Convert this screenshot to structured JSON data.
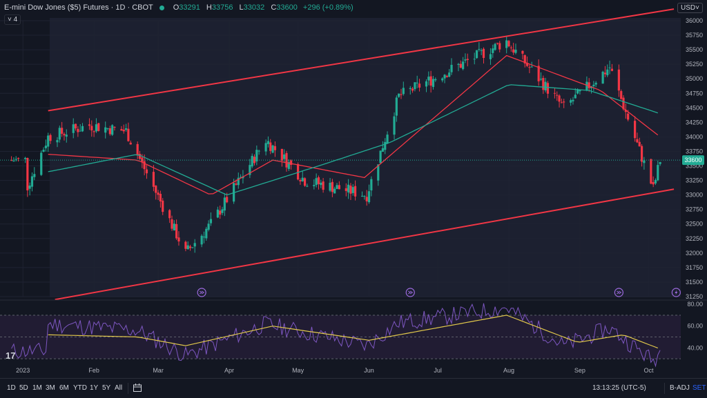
{
  "header": {
    "title": "E-mini Dow Jones ($5) Futures · 1D · CBOT",
    "ohlc": {
      "o_label": "O",
      "o": "33291",
      "h_label": "H",
      "h": "33756",
      "l_label": "L",
      "l": "33032",
      "c_label": "C",
      "c": "33600",
      "change": "+296 (+0.89%)"
    },
    "indicator_count": "4",
    "currency": "USD"
  },
  "colors": {
    "bg": "#131722",
    "up": "#22ab94",
    "down": "#f23645",
    "ma_fast": "#f23645",
    "ma_slow": "#22ab94",
    "channel": "#f23645",
    "rsi": "#7e57c2",
    "rsi_ma": "#e2c94b"
  },
  "chart_data": [
    {
      "type": "candlestick",
      "y_ticks": [
        "36000",
        "35750",
        "35500",
        "35250",
        "35000",
        "34750",
        "34500",
        "34250",
        "34000",
        "33750",
        "33500",
        "33250",
        "33000",
        "32750",
        "32500",
        "32250",
        "32000",
        "31750",
        "31500",
        "31250"
      ],
      "ylim": [
        31250,
        36000
      ],
      "x_ticks": [
        "2023",
        "Feb",
        "Mar",
        "Apr",
        "May",
        "Jun",
        "Jul",
        "Aug",
        "Sep",
        "Oct"
      ],
      "last_price_label": "33600",
      "key_points": [
        {
          "date": "2023-01-03",
          "close": 33150
        },
        {
          "date": "2023-01-12",
          "close": 34000
        },
        {
          "date": "2023-01-30",
          "close": 34200
        },
        {
          "date": "2023-02-15",
          "close": 34100
        },
        {
          "date": "2023-03-13",
          "close": 32000
        },
        {
          "date": "2023-03-24",
          "close": 32500
        },
        {
          "date": "2023-04-17",
          "close": 33950
        },
        {
          "date": "2023-05-04",
          "close": 33250
        },
        {
          "date": "2023-05-31",
          "close": 33000
        },
        {
          "date": "2023-06-14",
          "close": 34700
        },
        {
          "date": "2023-07-31",
          "close": 35650
        },
        {
          "date": "2023-08-25",
          "close": 34500
        },
        {
          "date": "2023-09-14",
          "close": 35200
        },
        {
          "date": "2023-10-03",
          "close": 33100
        },
        {
          "date": "2023-10-06",
          "close": 33600
        }
      ],
      "moving_averages": [
        {
          "color": "#f23645",
          "key_points": [
            {
              "date": "2023-01-12",
              "value": 33700
            },
            {
              "date": "2023-02-20",
              "value": 33600
            },
            {
              "date": "2023-03-24",
              "value": 33000
            },
            {
              "date": "2023-04-20",
              "value": 33600
            },
            {
              "date": "2023-05-30",
              "value": 33300
            },
            {
              "date": "2023-07-31",
              "value": 35400
            },
            {
              "date": "2023-09-10",
              "value": 34800
            },
            {
              "date": "2023-10-06",
              "value": 34000
            }
          ]
        },
        {
          "color": "#22ab94",
          "key_points": [
            {
              "date": "2023-01-12",
              "value": 33400
            },
            {
              "date": "2023-02-20",
              "value": 33700
            },
            {
              "date": "2023-03-31",
              "value": 33000
            },
            {
              "date": "2023-05-10",
              "value": 33500
            },
            {
              "date": "2023-06-10",
              "value": 33900
            },
            {
              "date": "2023-08-01",
              "value": 34900
            },
            {
              "date": "2023-09-05",
              "value": 34800
            },
            {
              "date": "2023-10-06",
              "value": 34400
            }
          ]
        }
      ],
      "channel": {
        "upper": [
          {
            "date": "2023-01-12",
            "value": 34450
          },
          {
            "date": "2023-10-12",
            "value": 36200
          }
        ],
        "lower": [
          {
            "date": "2023-01-15",
            "value": 31200
          },
          {
            "date": "2023-10-12",
            "value": 33100
          }
        ]
      },
      "event_markers": [
        {
          "date": "2023-03-20",
          "icon": "fast-forward-circle-icon"
        },
        {
          "date": "2023-06-19",
          "icon": "fast-forward-circle-icon"
        },
        {
          "date": "2023-09-18",
          "icon": "fast-forward-circle-icon"
        },
        {
          "date": "2023-10-13",
          "icon": "lightning-circle-icon"
        }
      ]
    },
    {
      "type": "line",
      "y_ticks": [
        "80.00",
        "60.00",
        "40.00"
      ],
      "ylim": [
        25,
        82
      ],
      "rsi_key_points": [
        {
          "date": "2023-01-12",
          "value": 62
        },
        {
          "date": "2023-02-20",
          "value": 56
        },
        {
          "date": "2023-03-13",
          "value": 33
        },
        {
          "date": "2023-04-17",
          "value": 62
        },
        {
          "date": "2023-05-31",
          "value": 42
        },
        {
          "date": "2023-06-14",
          "value": 63
        },
        {
          "date": "2023-07-31",
          "value": 77
        },
        {
          "date": "2023-08-25",
          "value": 42
        },
        {
          "date": "2023-09-14",
          "value": 58
        },
        {
          "date": "2023-10-03",
          "value": 28
        },
        {
          "date": "2023-10-06",
          "value": 37
        }
      ],
      "ma_key_points": [
        {
          "date": "2023-01-12",
          "value": 52
        },
        {
          "date": "2023-02-20",
          "value": 50
        },
        {
          "date": "2023-03-13",
          "value": 42
        },
        {
          "date": "2023-04-20",
          "value": 60
        },
        {
          "date": "2023-06-01",
          "value": 47
        },
        {
          "date": "2023-07-31",
          "value": 70
        },
        {
          "date": "2023-08-31",
          "value": 45
        },
        {
          "date": "2023-09-20",
          "value": 52
        },
        {
          "date": "2023-10-06",
          "value": 39
        }
      ]
    }
  ],
  "bottom": {
    "timeframes": [
      "1D",
      "5D",
      "1M",
      "3M",
      "6M",
      "YTD",
      "1Y",
      "5Y",
      "All"
    ],
    "clock": "13:13:25 (UTC-5)",
    "badj": "B-ADJ",
    "set": "SET"
  },
  "logo_text": "TV"
}
